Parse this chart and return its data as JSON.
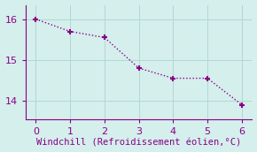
{
  "x": [
    0,
    1,
    2,
    3,
    4,
    5,
    6
  ],
  "y": [
    16.0,
    15.7,
    15.55,
    14.8,
    14.55,
    14.55,
    13.9
  ],
  "line_color": "#880088",
  "marker": "+",
  "marker_size": 5,
  "marker_linewidth": 1.5,
  "xlabel": "Windchill (Refroidissement éolien,°C)",
  "xlabel_color": "#880088",
  "ylim": [
    13.55,
    16.35
  ],
  "xlim": [
    -0.3,
    6.3
  ],
  "yticks": [
    14,
    15,
    16
  ],
  "xticks": [
    0,
    1,
    2,
    3,
    4,
    5,
    6
  ],
  "background_color": "#d5efec",
  "grid_color": "#b0d8d4",
  "tick_color": "#880088",
  "spine_color": "#880088",
  "label_fontsize": 7.5,
  "tick_fontsize": 8,
  "line_width": 1.0
}
